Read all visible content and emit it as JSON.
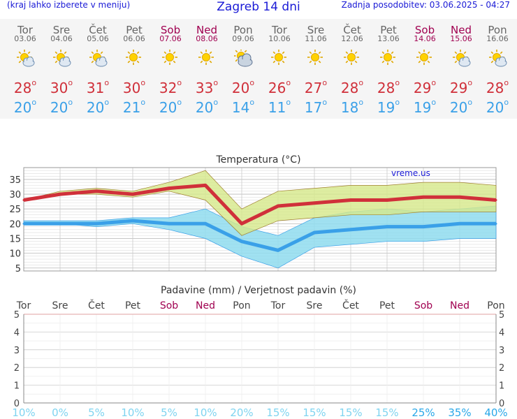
{
  "header": {
    "note": "(kraj lahko izberete v meniju)",
    "title": "Zagreb 14 dni",
    "updated": "Zadnja posodobitev: 03.06.2025 - 04:27"
  },
  "days": [
    {
      "name": "Tor",
      "date": "03.06",
      "weekend": false,
      "icon": "partly-cloudy-icon",
      "tmax": "28",
      "tmin": "20"
    },
    {
      "name": "Sre",
      "date": "04.06",
      "weekend": false,
      "icon": "partly-cloudy-icon",
      "tmax": "30",
      "tmin": "20"
    },
    {
      "name": "Čet",
      "date": "05.06",
      "weekend": false,
      "icon": "partly-cloudy-icon",
      "tmax": "31",
      "tmin": "20"
    },
    {
      "name": "Pet",
      "date": "06.06",
      "weekend": false,
      "icon": "sun-icon",
      "tmax": "30",
      "tmin": "21"
    },
    {
      "name": "Sob",
      "date": "07.06",
      "weekend": true,
      "icon": "sun-icon",
      "tmax": "32",
      "tmin": "20"
    },
    {
      "name": "Ned",
      "date": "08.06",
      "weekend": true,
      "icon": "sun-icon",
      "tmax": "33",
      "tmin": "20"
    },
    {
      "name": "Pon",
      "date": "09.06",
      "weekend": false,
      "icon": "cloudy-icon",
      "tmax": "20",
      "tmin": "14"
    },
    {
      "name": "Tor",
      "date": "10.06",
      "weekend": false,
      "icon": "sun-icon",
      "tmax": "26",
      "tmin": "11"
    },
    {
      "name": "Sre",
      "date": "11.06",
      "weekend": false,
      "icon": "sun-icon",
      "tmax": "27",
      "tmin": "17"
    },
    {
      "name": "Čet",
      "date": "12.06",
      "weekend": false,
      "icon": "sun-icon",
      "tmax": "28",
      "tmin": "18"
    },
    {
      "name": "Pet",
      "date": "13.06",
      "weekend": false,
      "icon": "sun-icon",
      "tmax": "28",
      "tmin": "19"
    },
    {
      "name": "Sob",
      "date": "14.06",
      "weekend": true,
      "icon": "sun-icon",
      "tmax": "29",
      "tmin": "19"
    },
    {
      "name": "Ned",
      "date": "15.06",
      "weekend": true,
      "icon": "partly-cloudy-icon",
      "tmax": "29",
      "tmin": "20"
    },
    {
      "name": "Pon",
      "date": "16.06",
      "weekend": false,
      "icon": "partly-cloudy-icon",
      "tmax": "28",
      "tmin": "20"
    }
  ],
  "colors": {
    "header_text": "#1a1ad6",
    "weekday": "#666666",
    "weekend": "#a00050",
    "tmax": "#d0303a",
    "tmin": "#3aa0e8",
    "max_band": "#d6e88a",
    "min_band": "#8fdcee",
    "grid": "#cccccc",
    "precip_pct": "#7fd4f0",
    "precip_pct_strong": "#2aa8e8"
  },
  "chart_data": [
    {
      "type": "line",
      "title": "Temperatura (°C)",
      "watermark": "vreme.us",
      "ylim": [
        4,
        39
      ],
      "yticks": [
        5,
        10,
        15,
        20,
        25,
        30,
        35
      ],
      "x": [
        "03.06",
        "04.06",
        "05.06",
        "06.06",
        "07.06",
        "08.06",
        "09.06",
        "10.06",
        "11.06",
        "12.06",
        "13.06",
        "14.06",
        "15.06",
        "16.06"
      ],
      "series": [
        {
          "role": "tmax",
          "values": [
            28,
            30,
            31,
            30,
            32,
            33,
            20,
            26,
            27,
            28,
            28,
            29,
            29,
            28
          ]
        },
        {
          "role": "tmin",
          "values": [
            20,
            20,
            20,
            21,
            20,
            20,
            14,
            11,
            17,
            18,
            19,
            19,
            20,
            20
          ]
        }
      ],
      "bands": [
        {
          "role": "tmax_range",
          "low": [
            28,
            30,
            30,
            29,
            31,
            28,
            16,
            21,
            22,
            23,
            23,
            24,
            24,
            24
          ],
          "high": [
            28,
            31,
            32,
            31,
            34,
            38,
            25,
            31,
            32,
            33,
            33,
            34,
            34,
            33
          ]
        },
        {
          "role": "tmin_range",
          "low": [
            20,
            20,
            19,
            20,
            18,
            15,
            9,
            5,
            12,
            13,
            14,
            14,
            15,
            15
          ],
          "high": [
            21,
            21,
            21,
            22,
            22,
            25,
            19,
            16,
            22,
            24,
            25,
            24,
            25,
            26
          ]
        }
      ]
    },
    {
      "type": "bar",
      "title": "Padavine (mm) / Verjetnost padavin (%)",
      "categories": [
        "Tor",
        "Sre",
        "Čet",
        "Pet",
        "Sob",
        "Ned",
        "Pon",
        "Tor",
        "Sre",
        "Čet",
        "Pet",
        "Sob",
        "Ned",
        "Pon"
      ],
      "weekend": [
        false,
        false,
        false,
        false,
        true,
        true,
        false,
        false,
        false,
        false,
        false,
        true,
        true,
        false
      ],
      "ylim": [
        0,
        5
      ],
      "yticks": [
        "0",
        "1",
        "2",
        "3",
        "4",
        "5"
      ],
      "values": [
        0,
        0,
        0,
        0,
        0,
        0,
        0,
        0,
        0,
        0,
        0,
        0,
        0,
        0
      ],
      "probability": [
        "10%",
        "0%",
        "5%",
        "10%",
        "5%",
        "10%",
        "20%",
        "15%",
        "15%",
        "15%",
        "15%",
        "25%",
        "35%",
        "40%"
      ],
      "probability_values": [
        10,
        0,
        5,
        10,
        5,
        10,
        20,
        15,
        15,
        15,
        15,
        25,
        35,
        40
      ]
    }
  ]
}
